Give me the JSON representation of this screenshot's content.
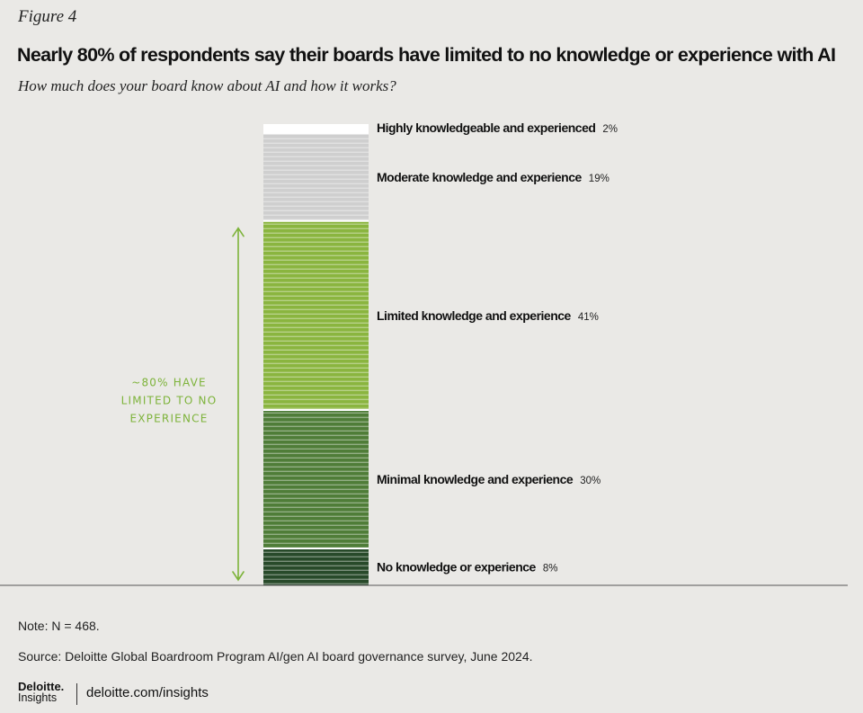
{
  "figure_label": "Figure 4",
  "title": "Nearly 80% of respondents say their boards have limited to no knowledge or experience with AI",
  "subtitle": "How much does your board know about AI and how it works?",
  "chart_data": {
    "type": "bar",
    "stacked": true,
    "categories": [
      "Highly knowledgeable and experienced",
      "Moderate knowledge and experience",
      "Limited knowledge and experience",
      "Minimal knowledge and experience",
      "No knowledge or experience"
    ],
    "values": [
      2,
      19,
      41,
      30,
      8
    ],
    "value_labels": [
      "2%",
      "19%",
      "41%",
      "30%",
      "8%"
    ],
    "colors": [
      "#ffffff",
      "#cfcfcf",
      "#8ab53f",
      "#4f7d38",
      "#284a2a"
    ],
    "annotation": [
      "~80% HAVE",
      "LIMITED TO NO",
      "EXPERIENCE"
    ],
    "annotation_color": "#7db33a",
    "ylim": [
      0,
      100
    ]
  },
  "note": "Note: N = 468.",
  "source": "Source: Deloitte Global Boardroom Program AI/gen AI board governance survey, June 2024.",
  "footer": {
    "brand": "Deloitte.",
    "brand_sub": "Insights",
    "url": "deloitte.com/insights"
  }
}
